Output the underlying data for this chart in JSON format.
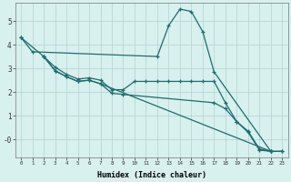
{
  "xlabel": "Humidex (Indice chaleur)",
  "bg_color": "#d8f0ee",
  "line_color": "#1a6e6e",
  "grid_color": "#b0d4d0",
  "xlim": [
    -0.5,
    23.5
  ],
  "ylim": [
    -0.75,
    5.75
  ],
  "series": [
    {
      "x": [
        0,
        1,
        12,
        13,
        14,
        15,
        16,
        17,
        22
      ],
      "y": [
        4.3,
        3.7,
        3.5,
        4.8,
        5.5,
        5.4,
        4.55,
        2.85,
        -0.5
      ]
    },
    {
      "x": [
        2,
        3,
        4,
        5,
        6,
        7,
        8,
        9,
        10,
        11,
        12,
        13,
        14,
        15,
        16,
        17,
        18,
        19,
        20,
        21,
        22
      ],
      "y": [
        3.5,
        3.05,
        2.75,
        2.55,
        2.6,
        2.5,
        2.1,
        2.1,
        2.45,
        2.45,
        2.45,
        2.45,
        2.45,
        2.45,
        2.45,
        2.45,
        1.55,
        0.75,
        0.3,
        -0.45,
        -0.5
      ]
    },
    {
      "x": [
        2,
        3,
        4,
        5,
        6,
        7,
        22,
        23
      ],
      "y": [
        3.5,
        2.9,
        2.65,
        2.45,
        2.5,
        2.35,
        -0.5,
        -0.5
      ]
    },
    {
      "x": [
        0,
        2,
        3,
        4,
        5,
        6,
        7,
        8,
        9,
        17,
        18,
        19,
        20,
        21,
        22,
        23
      ],
      "y": [
        4.3,
        3.5,
        2.9,
        2.65,
        2.45,
        2.5,
        2.35,
        1.95,
        1.9,
        1.55,
        1.3,
        0.75,
        0.35,
        -0.4,
        -0.5,
        -0.5
      ]
    }
  ]
}
